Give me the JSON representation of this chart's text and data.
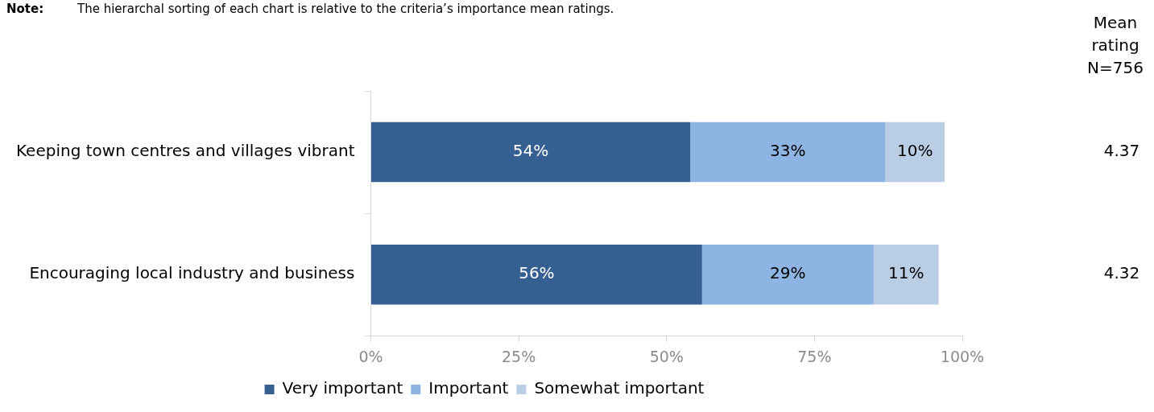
{
  "chart_data": {
    "type": "bar",
    "orientation": "horizontal",
    "stacked": true,
    "categories": [
      "Keeping town centres and villages vibrant",
      "Encouraging local industry and business"
    ],
    "series": [
      {
        "name": "Very important",
        "color": "#376092",
        "values": [
          54,
          56
        ],
        "value_labels": [
          "54%",
          "56%"
        ]
      },
      {
        "name": "Important",
        "color": "#8eb4e3",
        "values": [
          33,
          29
        ],
        "value_labels": [
          "33%",
          "29%"
        ]
      },
      {
        "name": "Somewhat important",
        "color": "#b9cde5",
        "values": [
          10,
          11
        ],
        "value_labels": [
          "10%",
          "11%"
        ]
      }
    ],
    "xlim": [
      0,
      100
    ],
    "xticks": [
      {
        "value": 0,
        "label": "0%"
      },
      {
        "value": 25,
        "label": "25%"
      },
      {
        "value": 50,
        "label": "50%"
      },
      {
        "value": 75,
        "label": "75%"
      },
      {
        "value": 100,
        "label": "100%"
      }
    ],
    "grid": false,
    "legend": "bottom",
    "annotations": [
      "Note:",
      "The hierarchal sorting of each chart is relative to the criteria’s importance mean ratings.",
      "Mean rating N=756",
      "4.37",
      "4.32"
    ]
  }
}
